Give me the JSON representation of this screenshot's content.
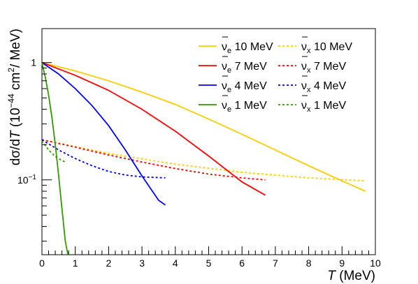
{
  "chart_data": {
    "type": "line",
    "title": "",
    "xlabel_italic": "T",
    "xlabel_unit": " (MeV)",
    "ylabel": {
      "prefix": "dσ/d",
      "var": "T",
      "open": "  (10",
      "exp1": "−44",
      "mid": " cm",
      "exp2": "2",
      "tail": "/ MeV)"
    },
    "xlim": [
      0,
      10
    ],
    "ylim": [
      0.023,
      1.95
    ],
    "y_scale": "log",
    "grid": false,
    "legend_position": "top-right",
    "x_ticks": [
      0,
      1,
      2,
      3,
      4,
      5,
      6,
      7,
      8,
      9,
      10
    ],
    "y_ticks": [
      {
        "value": 1,
        "label": "1"
      },
      {
        "value": 0.1,
        "label_base": "10",
        "label_exp": "−1"
      }
    ],
    "series": [
      {
        "name": "ν̄e 10 MeV",
        "flavor": "e",
        "energy": "10 MeV",
        "color": "#ffcc00",
        "style": "solid",
        "x": [
          0,
          1,
          2,
          3,
          4,
          5,
          6,
          7,
          8,
          9,
          9.7
        ],
        "y": [
          1.0,
          0.85,
          0.7,
          0.56,
          0.44,
          0.33,
          0.245,
          0.18,
          0.132,
          0.098,
          0.08
        ]
      },
      {
        "name": "ν̄x 10 MeV",
        "flavor": "x",
        "energy": "10 MeV",
        "color": "#ffcc00",
        "style": "dashed",
        "x": [
          0,
          2,
          4,
          6,
          8,
          9.7
        ],
        "y": [
          0.22,
          0.168,
          0.136,
          0.116,
          0.104,
          0.098
        ]
      },
      {
        "name": "ν̄e 7 MeV",
        "flavor": "e",
        "energy": "7 MeV",
        "color": "#ff0000",
        "style": "solid",
        "x": [
          0,
          1,
          2,
          3,
          4,
          5,
          6,
          6.7
        ],
        "y": [
          1.0,
          0.78,
          0.58,
          0.4,
          0.26,
          0.16,
          0.096,
          0.074
        ]
      },
      {
        "name": "ν̄x 7 MeV",
        "flavor": "x",
        "energy": "7 MeV",
        "color": "#ff0000",
        "style": "dashed",
        "x": [
          0,
          1,
          2,
          3,
          4,
          5,
          6,
          6.7
        ],
        "y": [
          0.22,
          0.19,
          0.163,
          0.142,
          0.125,
          0.112,
          0.104,
          0.1
        ]
      },
      {
        "name": "ν̄e 4 MeV",
        "flavor": "e",
        "energy": "4 MeV",
        "color": "#0000ff",
        "style": "solid",
        "x": [
          0,
          0.5,
          1,
          1.5,
          2,
          2.5,
          3,
          3.5,
          3.7
        ],
        "y": [
          1.0,
          0.8,
          0.6,
          0.43,
          0.29,
          0.18,
          0.108,
          0.067,
          0.061
        ]
      },
      {
        "name": "ν̄x 4 MeV",
        "flavor": "x",
        "energy": "4 MeV",
        "color": "#0000ff",
        "style": "dashed",
        "x": [
          0,
          0.5,
          1,
          1.5,
          2,
          2.5,
          3,
          3.7
        ],
        "y": [
          0.22,
          0.18,
          0.152,
          0.132,
          0.118,
          0.11,
          0.106,
          0.104
        ]
      },
      {
        "name": "ν̄e 1 MeV",
        "flavor": "e",
        "energy": "1 MeV",
        "color": "#339900",
        "style": "solid",
        "x": [
          0,
          0.1,
          0.2,
          0.3,
          0.4,
          0.5,
          0.6,
          0.7,
          0.78
        ],
        "y": [
          1.0,
          0.75,
          0.53,
          0.34,
          0.2,
          0.11,
          0.057,
          0.03,
          0.023
        ]
      },
      {
        "name": "ν̄x 1 MeV",
        "flavor": "x",
        "energy": "1 MeV",
        "color": "#339900",
        "style": "dashed",
        "x": [
          0,
          0.2,
          0.4,
          0.6,
          0.7
        ],
        "y": [
          0.215,
          0.18,
          0.158,
          0.146,
          0.142
        ]
      }
    ],
    "legend_order": [
      0,
      1,
      2,
      3,
      4,
      5,
      6,
      7
    ]
  }
}
